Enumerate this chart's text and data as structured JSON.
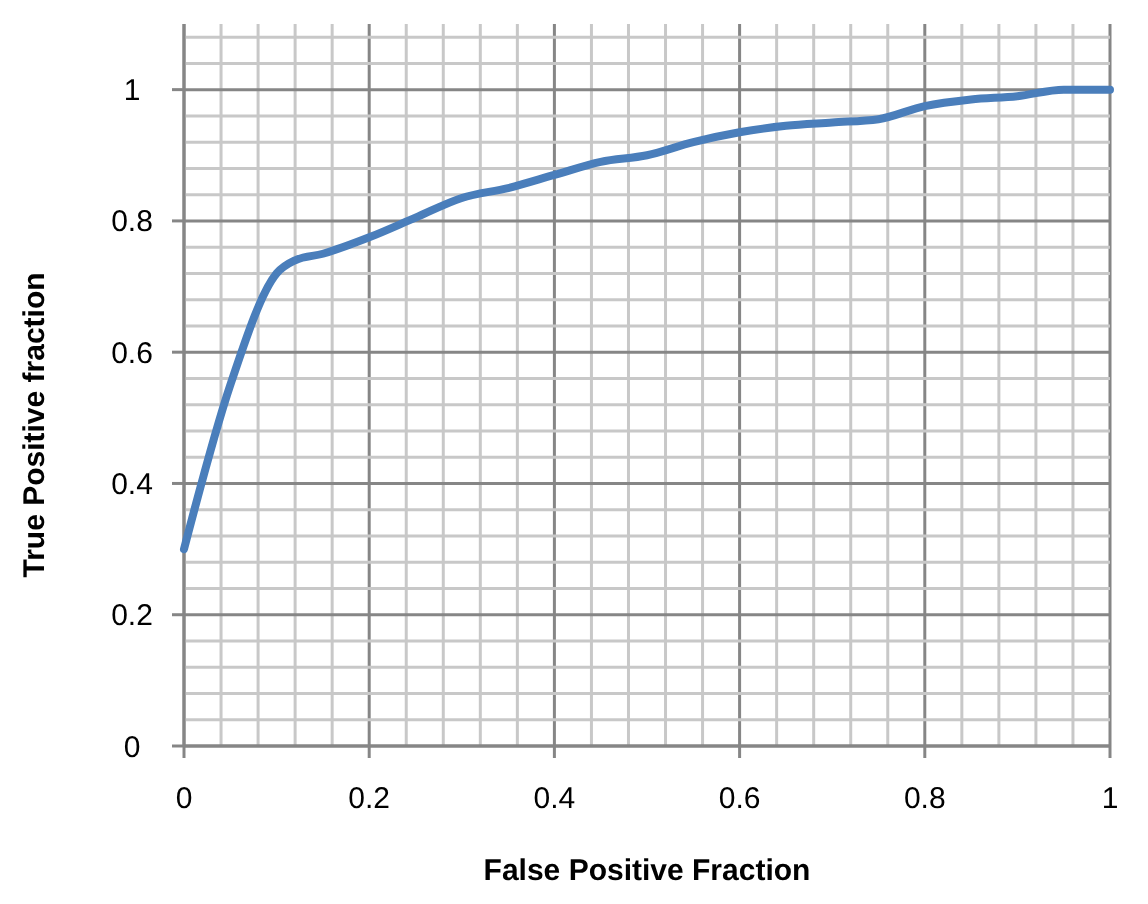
{
  "chart_data": {
    "type": "line",
    "xlabel": "False Positive Fraction",
    "ylabel": "True Positive fraction",
    "x": [
      0,
      0.05,
      0.1,
      0.12,
      0.15,
      0.2,
      0.25,
      0.3,
      0.35,
      0.4,
      0.45,
      0.5,
      0.55,
      0.6,
      0.65,
      0.7,
      0.75,
      0.8,
      0.85,
      0.9,
      0.95,
      1
    ],
    "series": [
      {
        "color": "#4a7ebb",
        "values": [
          0.3,
          0.55,
          0.72,
          0.74,
          0.75,
          0.775,
          0.805,
          0.835,
          0.85,
          0.87,
          0.89,
          0.9,
          0.92,
          0.935,
          0.945,
          0.95,
          0.955,
          0.975,
          0.985,
          0.99,
          1.0,
          1.0
        ]
      }
    ],
    "xlim": [
      0,
      1
    ],
    "ylim": [
      0,
      1.1
    ],
    "xticks": [
      0,
      {
        "value": 0.04,
        "label": null
      },
      {
        "value": 0.08,
        "label": null
      },
      {
        "value": 0.12,
        "label": null
      },
      {
        "value": 0.16,
        "label": null
      },
      0.2,
      {
        "value": 0.24,
        "label": null
      },
      {
        "value": 0.28,
        "label": null
      },
      {
        "value": 0.32,
        "label": null
      },
      {
        "value": 0.36,
        "label": null
      },
      0.4,
      {
        "value": 0.44,
        "label": null
      },
      {
        "value": 0.48,
        "label": null
      },
      {
        "value": 0.52,
        "label": null
      },
      {
        "value": 0.56,
        "label": null
      },
      0.6,
      {
        "value": 0.64,
        "label": null
      },
      {
        "value": 0.68,
        "label": null
      },
      {
        "value": 0.72,
        "label": null
      },
      {
        "value": 0.76,
        "label": null
      },
      0.8,
      {
        "value": 0.84,
        "label": null
      },
      {
        "value": 0.88,
        "label": null
      },
      {
        "value": 0.92,
        "label": null
      },
      {
        "value": 0.96,
        "label": null
      },
      1
    ],
    "yticks": [
      0,
      {
        "value": 0.04,
        "label": null
      },
      {
        "value": 0.08,
        "label": null
      },
      {
        "value": 0.12,
        "label": null
      },
      {
        "value": 0.16,
        "label": null
      },
      0.2,
      {
        "value": 0.24,
        "label": null
      },
      {
        "value": 0.28,
        "label": null
      },
      {
        "value": 0.32,
        "label": null
      },
      {
        "value": 0.36,
        "label": null
      },
      0.4,
      {
        "value": 0.44,
        "label": null
      },
      {
        "value": 0.48,
        "label": null
      },
      {
        "value": 0.52,
        "label": null
      },
      {
        "value": 0.56,
        "label": null
      },
      0.6,
      {
        "value": 0.64,
        "label": null
      },
      {
        "value": 0.68,
        "label": null
      },
      {
        "value": 0.72,
        "label": null
      },
      {
        "value": 0.76,
        "label": null
      },
      0.8,
      {
        "value": 0.84,
        "label": null
      },
      {
        "value": 0.88,
        "label": null
      },
      {
        "value": 0.92,
        "label": null
      },
      {
        "value": 0.96,
        "label": null
      },
      1,
      {
        "value": 1.04,
        "label": null
      },
      {
        "value": 1.08,
        "label": null
      }
    ],
    "grid": true,
    "marker": "none",
    "line_style": "solid"
  }
}
